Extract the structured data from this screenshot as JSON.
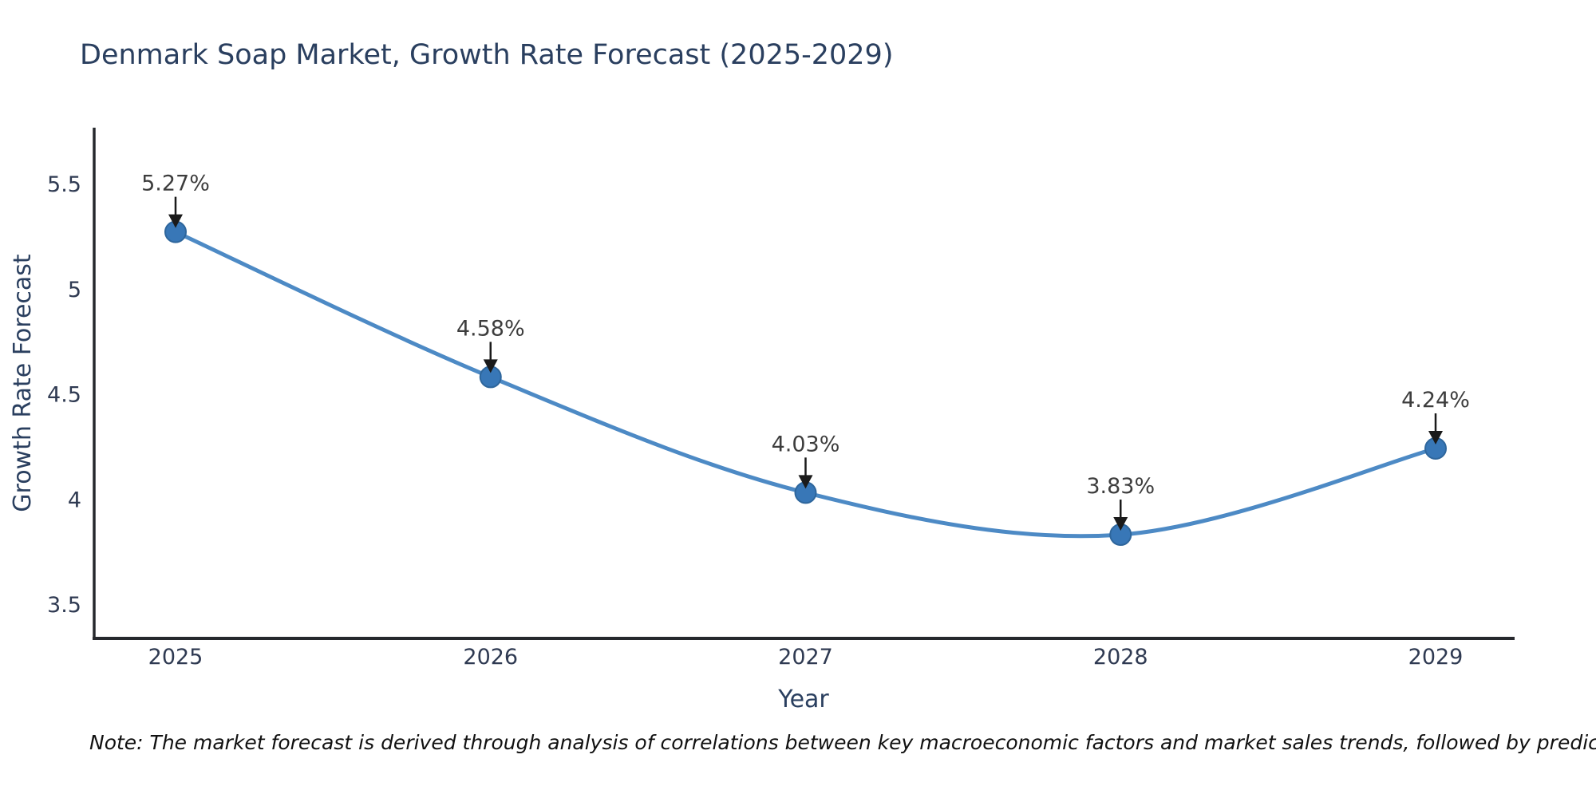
{
  "page": {
    "background": "#ffffff"
  },
  "chart_data": {
    "type": "line",
    "title": "Denmark Soap Market, Growth Rate Forecast (2025-2029)",
    "xlabel": "Year",
    "ylabel": "Growth Rate Forecast",
    "x": [
      2025,
      2026,
      2027,
      2028,
      2029
    ],
    "values": [
      5.27,
      4.58,
      4.03,
      3.83,
      4.24
    ],
    "point_labels": [
      "5.27%",
      "4.58%",
      "4.03%",
      "3.83%",
      "4.24%"
    ],
    "xticks": [
      "2025",
      "2026",
      "2027",
      "2028",
      "2029"
    ],
    "yticks": [
      "5.5",
      "5",
      "4.5",
      "4",
      "3.5"
    ],
    "ylim": [
      3.34,
      5.77
    ],
    "xlim": [
      2024.73,
      2029.25
    ],
    "line_shape": "spline",
    "grid": false,
    "legend": "none",
    "annotation_arrows": "down-to-point",
    "colors": {
      "line": "#4d8ac5",
      "marker": "#3877b7",
      "marker_edge": "#2e669c",
      "axis": "#26282d",
      "title_text": "#2a3f5f",
      "annotation_text": "#3d3d3d",
      "arrow": "#1a1a1a"
    },
    "note": "Note: The market forecast is derived through analysis of correlations between key macroeconomic factors and market sales trends, followed by predictive modeling to project future sales."
  }
}
